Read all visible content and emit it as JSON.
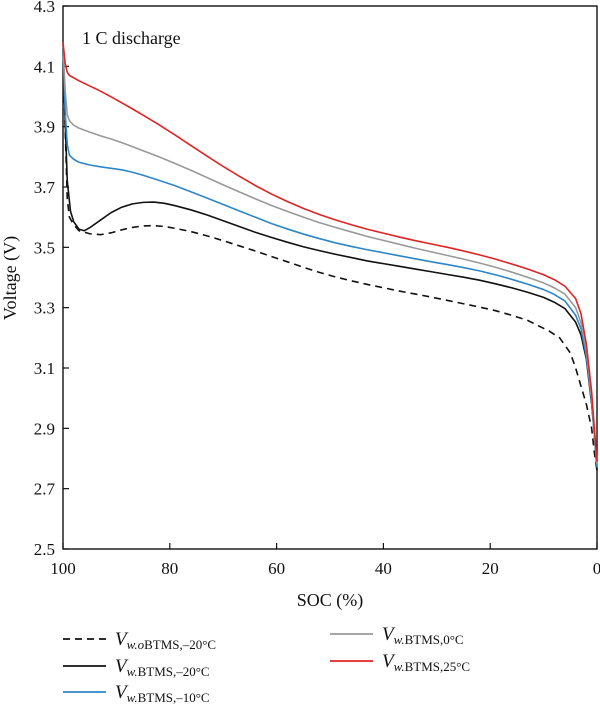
{
  "chart_data": {
    "type": "line",
    "title": "",
    "annotation": "1 C discharge",
    "xlabel": "SOC (%)",
    "ylabel": "Voltage (V)",
    "xlim": [
      100,
      0
    ],
    "ylim": [
      2.5,
      4.3
    ],
    "x_reversed": true,
    "xticks": [
      100,
      80,
      60,
      40,
      20,
      0
    ],
    "yticks": [
      2.5,
      2.7,
      2.9,
      3.1,
      3.3,
      3.5,
      3.7,
      3.9,
      4.1,
      4.3
    ],
    "grid": false,
    "legend_position": "bottom",
    "series": [
      {
        "name": "V_w.oBTMS,−20°C",
        "legend": {
          "main": "V",
          "sub": "w.o",
          "rest": "BTMS,–20°C"
        },
        "color": "#111111",
        "dash": "dashed",
        "points": [
          [
            100,
            4.16
          ],
          [
            99.6,
            3.9
          ],
          [
            99.2,
            3.66
          ],
          [
            98.8,
            3.6
          ],
          [
            98,
            3.575
          ],
          [
            97,
            3.555
          ],
          [
            95,
            3.545
          ],
          [
            93,
            3.542
          ],
          [
            91,
            3.548
          ],
          [
            89,
            3.558
          ],
          [
            87,
            3.566
          ],
          [
            85,
            3.571
          ],
          [
            83,
            3.572
          ],
          [
            81,
            3.569
          ],
          [
            79,
            3.563
          ],
          [
            76,
            3.552
          ],
          [
            73,
            3.538
          ],
          [
            70,
            3.522
          ],
          [
            67,
            3.505
          ],
          [
            64,
            3.488
          ],
          [
            61,
            3.47
          ],
          [
            58,
            3.452
          ],
          [
            55,
            3.434
          ],
          [
            52,
            3.417
          ],
          [
            49,
            3.402
          ],
          [
            46,
            3.389
          ],
          [
            43,
            3.377
          ],
          [
            40,
            3.366
          ],
          [
            37,
            3.355
          ],
          [
            34,
            3.345
          ],
          [
            31,
            3.335
          ],
          [
            28,
            3.324
          ],
          [
            25,
            3.313
          ],
          [
            22,
            3.302
          ],
          [
            19,
            3.29
          ],
          [
            16,
            3.275
          ],
          [
            13,
            3.258
          ],
          [
            11,
            3.24
          ],
          [
            9,
            3.223
          ],
          [
            7,
            3.2
          ],
          [
            5,
            3.15
          ],
          [
            4,
            3.1
          ],
          [
            3,
            3.04
          ],
          [
            2,
            2.98
          ],
          [
            1,
            2.9
          ],
          [
            0.5,
            2.82
          ],
          [
            0,
            2.76
          ]
        ]
      },
      {
        "name": "V_w.BTMS,−20°C",
        "legend": {
          "main": "V",
          "sub": "w.",
          "rest": "BTMS,–20°C"
        },
        "color": "#111111",
        "dash": "solid",
        "points": [
          [
            100,
            4.16
          ],
          [
            99.6,
            3.92
          ],
          [
            99.2,
            3.72
          ],
          [
            98.6,
            3.62
          ],
          [
            98,
            3.585
          ],
          [
            97,
            3.56
          ],
          [
            96,
            3.555
          ],
          [
            95,
            3.565
          ],
          [
            93,
            3.59
          ],
          [
            91,
            3.615
          ],
          [
            89,
            3.633
          ],
          [
            87,
            3.644
          ],
          [
            85,
            3.649
          ],
          [
            83,
            3.65
          ],
          [
            81,
            3.646
          ],
          [
            79,
            3.638
          ],
          [
            76,
            3.624
          ],
          [
            73,
            3.607
          ],
          [
            70,
            3.588
          ],
          [
            67,
            3.569
          ],
          [
            64,
            3.55
          ],
          [
            61,
            3.533
          ],
          [
            58,
            3.517
          ],
          [
            55,
            3.502
          ],
          [
            52,
            3.489
          ],
          [
            49,
            3.477
          ],
          [
            46,
            3.466
          ],
          [
            43,
            3.455
          ],
          [
            40,
            3.446
          ],
          [
            37,
            3.437
          ],
          [
            34,
            3.428
          ],
          [
            31,
            3.419
          ],
          [
            28,
            3.41
          ],
          [
            25,
            3.401
          ],
          [
            22,
            3.391
          ],
          [
            19,
            3.379
          ],
          [
            16,
            3.366
          ],
          [
            13,
            3.351
          ],
          [
            10,
            3.334
          ],
          [
            8,
            3.318
          ],
          [
            6,
            3.297
          ],
          [
            4,
            3.252
          ],
          [
            3,
            3.21
          ],
          [
            2,
            3.13
          ],
          [
            1,
            2.98
          ],
          [
            0.5,
            2.88
          ],
          [
            0,
            2.76
          ]
        ]
      },
      {
        "name": "V_w.BTMS,−10°C",
        "legend": {
          "main": "V",
          "sub": "w.",
          "rest": "BTMS,–10°C"
        },
        "color": "#2e86c8",
        "dash": "solid",
        "points": [
          [
            100,
            4.16
          ],
          [
            99.6,
            3.95
          ],
          [
            99.2,
            3.84
          ],
          [
            98.8,
            3.805
          ],
          [
            98,
            3.792
          ],
          [
            97,
            3.782
          ],
          [
            95,
            3.773
          ],
          [
            93,
            3.767
          ],
          [
            91,
            3.762
          ],
          [
            89,
            3.757
          ],
          [
            87,
            3.749
          ],
          [
            85,
            3.739
          ],
          [
            82,
            3.722
          ],
          [
            79,
            3.704
          ],
          [
            76,
            3.684
          ],
          [
            73,
            3.663
          ],
          [
            70,
            3.642
          ],
          [
            67,
            3.621
          ],
          [
            64,
            3.6
          ],
          [
            61,
            3.579
          ],
          [
            58,
            3.561
          ],
          [
            55,
            3.544
          ],
          [
            52,
            3.529
          ],
          [
            49,
            3.515
          ],
          [
            46,
            3.503
          ],
          [
            43,
            3.492
          ],
          [
            40,
            3.482
          ],
          [
            37,
            3.472
          ],
          [
            34,
            3.462
          ],
          [
            31,
            3.452
          ],
          [
            28,
            3.443
          ],
          [
            25,
            3.433
          ],
          [
            22,
            3.422
          ],
          [
            19,
            3.409
          ],
          [
            16,
            3.394
          ],
          [
            13,
            3.378
          ],
          [
            10,
            3.36
          ],
          [
            8,
            3.344
          ],
          [
            6,
            3.322
          ],
          [
            4,
            3.275
          ],
          [
            3,
            3.23
          ],
          [
            2,
            3.14
          ],
          [
            1,
            2.99
          ],
          [
            0.5,
            2.88
          ],
          [
            0,
            2.77
          ]
        ]
      },
      {
        "name": "V_w.BTMS,0°C",
        "legend": {
          "main": "V",
          "sub": "w.",
          "rest": "BTMS,0°C"
        },
        "color": "#999999",
        "dash": "solid",
        "points": [
          [
            100,
            4.17
          ],
          [
            99.6,
            4.02
          ],
          [
            99.2,
            3.94
          ],
          [
            98.8,
            3.92
          ],
          [
            98,
            3.905
          ],
          [
            97,
            3.895
          ],
          [
            95,
            3.882
          ],
          [
            93,
            3.87
          ],
          [
            91,
            3.859
          ],
          [
            89,
            3.847
          ],
          [
            87,
            3.834
          ],
          [
            85,
            3.82
          ],
          [
            82,
            3.8
          ],
          [
            79,
            3.778
          ],
          [
            76,
            3.755
          ],
          [
            73,
            3.731
          ],
          [
            70,
            3.707
          ],
          [
            67,
            3.684
          ],
          [
            64,
            3.661
          ],
          [
            61,
            3.639
          ],
          [
            58,
            3.619
          ],
          [
            55,
            3.6
          ],
          [
            52,
            3.582
          ],
          [
            49,
            3.566
          ],
          [
            46,
            3.551
          ],
          [
            43,
            3.536
          ],
          [
            40,
            3.523
          ],
          [
            37,
            3.51
          ],
          [
            34,
            3.497
          ],
          [
            31,
            3.485
          ],
          [
            28,
            3.473
          ],
          [
            25,
            3.461
          ],
          [
            22,
            3.448
          ],
          [
            19,
            3.434
          ],
          [
            16,
            3.418
          ],
          [
            13,
            3.401
          ],
          [
            10,
            3.382
          ],
          [
            8,
            3.366
          ],
          [
            6,
            3.345
          ],
          [
            4,
            3.3
          ],
          [
            3,
            3.25
          ],
          [
            2,
            3.16
          ],
          [
            1,
            3.0
          ],
          [
            0.5,
            2.88
          ],
          [
            0,
            2.78
          ]
        ]
      },
      {
        "name": "V_w.BTMS,25°C",
        "legend": {
          "main": "V",
          "sub": "w.",
          "rest": "BTMS,25°C"
        },
        "color": "#e02424",
        "dash": "solid",
        "points": [
          [
            100,
            4.18
          ],
          [
            99.6,
            4.11
          ],
          [
            99.2,
            4.08
          ],
          [
            98.8,
            4.07
          ],
          [
            98,
            4.062
          ],
          [
            97,
            4.052
          ],
          [
            95,
            4.035
          ],
          [
            93,
            4.018
          ],
          [
            91,
            3.999
          ],
          [
            89,
            3.979
          ],
          [
            87,
            3.959
          ],
          [
            85,
            3.938
          ],
          [
            82,
            3.906
          ],
          [
            79,
            3.872
          ],
          [
            76,
            3.837
          ],
          [
            73,
            3.802
          ],
          [
            70,
            3.768
          ],
          [
            67,
            3.736
          ],
          [
            64,
            3.705
          ],
          [
            61,
            3.677
          ],
          [
            58,
            3.652
          ],
          [
            55,
            3.629
          ],
          [
            52,
            3.609
          ],
          [
            49,
            3.591
          ],
          [
            46,
            3.575
          ],
          [
            43,
            3.56
          ],
          [
            40,
            3.547
          ],
          [
            37,
            3.534
          ],
          [
            34,
            3.522
          ],
          [
            31,
            3.511
          ],
          [
            28,
            3.5
          ],
          [
            25,
            3.488
          ],
          [
            22,
            3.475
          ],
          [
            19,
            3.461
          ],
          [
            16,
            3.445
          ],
          [
            13,
            3.428
          ],
          [
            10,
            3.409
          ],
          [
            8,
            3.393
          ],
          [
            6,
            3.371
          ],
          [
            4,
            3.33
          ],
          [
            3,
            3.28
          ],
          [
            2,
            3.18
          ],
          [
            1,
            3.02
          ],
          [
            0.5,
            2.9
          ],
          [
            0,
            2.79
          ]
        ]
      }
    ]
  }
}
